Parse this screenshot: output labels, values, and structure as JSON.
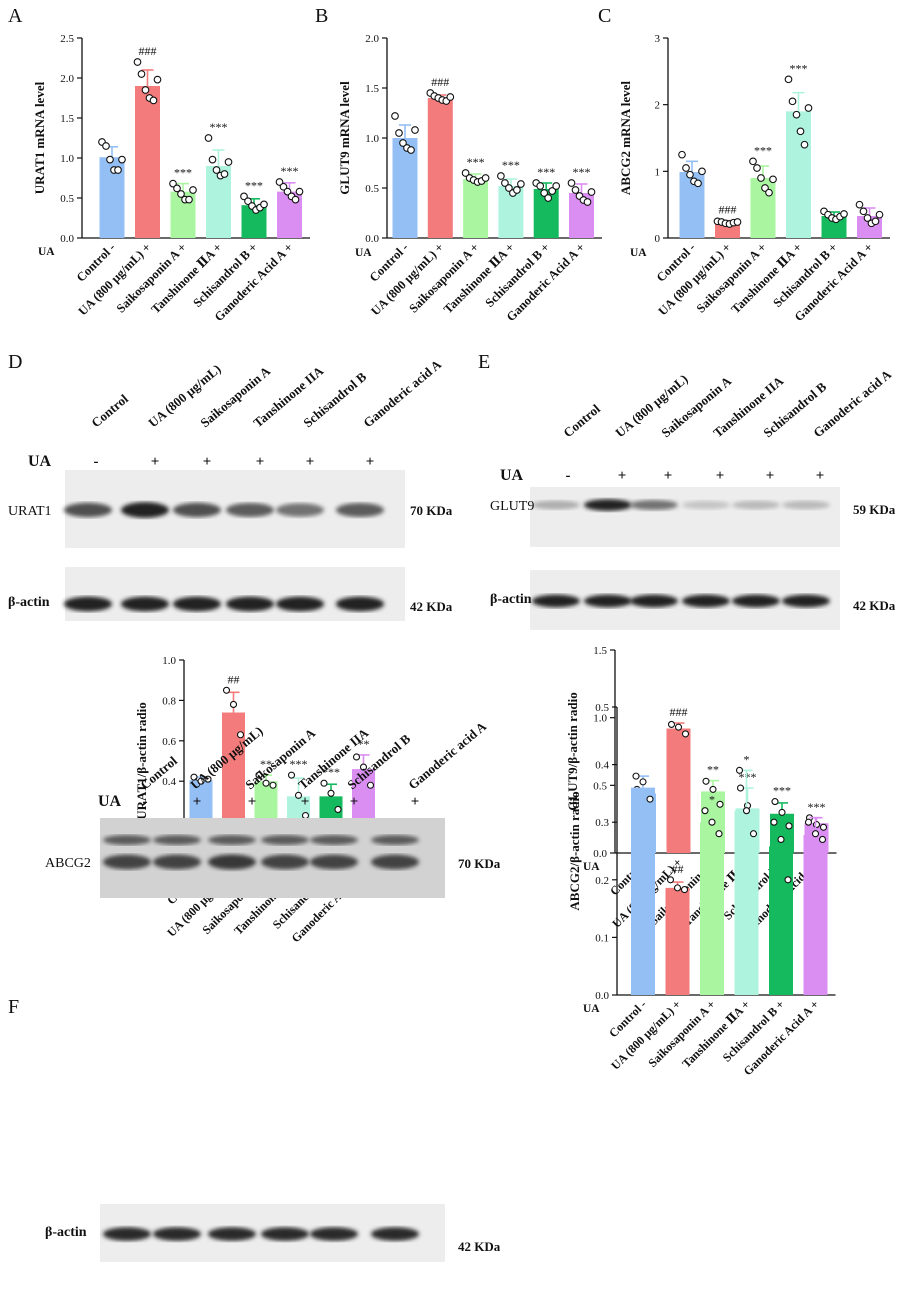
{
  "colors": [
    "#93bff5",
    "#f47b7b",
    "#aaf5a0",
    "#aef3de",
    "#16ba5e",
    "#db8ef2"
  ],
  "dot_color": "#111111",
  "panel_letters": [
    "A",
    "B",
    "C",
    "D",
    "E",
    "F"
  ],
  "ua_label": "UA",
  "ua_signs": [
    "-",
    "+",
    "+",
    "+",
    "+",
    "+"
  ],
  "chart_data": [
    {
      "id": "A",
      "type": "bar",
      "ylabel": "URAT1 mRNA level",
      "categories": [
        "Control",
        "UA (800 μg/mL)",
        "Saikosaponin A",
        "Tanshinone ⅡA",
        "Schisandrol B",
        "Ganoderic Acid A"
      ],
      "values": [
        1.01,
        1.9,
        0.58,
        0.9,
        0.41,
        0.58
      ],
      "errors": [
        0.13,
        0.2,
        0.1,
        0.2,
        0.08,
        0.11
      ],
      "points": [
        [
          1.2,
          1.15,
          0.98,
          0.85,
          0.85,
          0.98
        ],
        [
          2.2,
          2.05,
          1.85,
          1.75,
          1.72,
          1.98
        ],
        [
          0.68,
          0.62,
          0.55,
          0.48,
          0.48,
          0.6
        ],
        [
          1.25,
          0.98,
          0.85,
          0.78,
          0.8,
          0.95
        ],
        [
          0.52,
          0.46,
          0.4,
          0.35,
          0.38,
          0.42
        ],
        [
          0.7,
          0.64,
          0.58,
          0.52,
          0.48,
          0.58
        ]
      ],
      "annotations": [
        "",
        "###",
        "***",
        "***",
        "***",
        "***"
      ],
      "ylim": [
        0,
        2.5
      ],
      "yticks": [
        "0.0",
        "0.5",
        "1.0",
        "1.5",
        "2.0",
        "2.5"
      ]
    },
    {
      "id": "B",
      "type": "bar",
      "ylabel": "GLUT9 mRNA level",
      "categories": [
        "Control",
        "UA (800 μg/mL)",
        "Saikosaponin A",
        "Tanshinone ⅡA",
        "Schisandrol B",
        "Ganoderic Acid A"
      ],
      "values": [
        1.0,
        1.4,
        0.59,
        0.52,
        0.49,
        0.45
      ],
      "errors": [
        0.13,
        0.03,
        0.05,
        0.07,
        0.06,
        0.09
      ],
      "points": [
        [
          1.22,
          1.05,
          0.95,
          0.9,
          0.88,
          1.08
        ],
        [
          1.45,
          1.42,
          1.4,
          1.38,
          1.37,
          1.41
        ],
        [
          0.65,
          0.6,
          0.58,
          0.56,
          0.57,
          0.6
        ],
        [
          0.62,
          0.55,
          0.5,
          0.45,
          0.48,
          0.54
        ],
        [
          0.55,
          0.52,
          0.45,
          0.4,
          0.47,
          0.52
        ],
        [
          0.55,
          0.48,
          0.42,
          0.38,
          0.36,
          0.46
        ]
      ],
      "annotations": [
        "",
        "###",
        "***",
        "***",
        "***",
        "***"
      ],
      "ylim": [
        0,
        2.0
      ],
      "yticks": [
        "0.0",
        "0.5",
        "1.0",
        "1.5",
        "2.0"
      ]
    },
    {
      "id": "C",
      "type": "bar",
      "ylabel": "ABCG2 mRNA level",
      "categories": [
        "Control",
        "UA (800 μg/mL)",
        "Saikosaponin A",
        "Tanshinone ⅡA",
        "Schisandrol B",
        "Ganoderic Acid A"
      ],
      "values": [
        0.99,
        0.23,
        0.9,
        1.9,
        0.33,
        0.33
      ],
      "errors": [
        0.16,
        0.03,
        0.18,
        0.28,
        0.06,
        0.12
      ],
      "points": [
        [
          1.25,
          1.05,
          0.95,
          0.85,
          0.82,
          1.0
        ],
        [
          0.25,
          0.24,
          0.22,
          0.21,
          0.23,
          0.24
        ],
        [
          1.15,
          1.05,
          0.9,
          0.75,
          0.68,
          0.88
        ],
        [
          2.38,
          2.05,
          1.85,
          1.6,
          1.4,
          1.95
        ],
        [
          0.4,
          0.35,
          0.3,
          0.28,
          0.32,
          0.36
        ],
        [
          0.5,
          0.4,
          0.3,
          0.22,
          0.25,
          0.35
        ]
      ],
      "annotations": [
        "",
        "###",
        "***",
        "***",
        "",
        ""
      ],
      "ylim": [
        0,
        3
      ],
      "yticks": [
        "0",
        "1",
        "2",
        "3"
      ]
    },
    {
      "id": "D",
      "type": "bar",
      "ylabel": "URAT1/β-actin radio",
      "categories": [
        "Control",
        "UA (800 μg/mL)",
        "Saikosaponin A",
        "Tanshinone ⅡA",
        "Schisandrol B",
        "Ganoderic Acid A"
      ],
      "values": [
        0.405,
        0.74,
        0.4,
        0.325,
        0.325,
        0.46
      ],
      "errors": [
        0.015,
        0.1,
        0.03,
        0.09,
        0.06,
        0.07
      ],
      "points": [
        [
          0.42,
          0.4,
          0.41
        ],
        [
          0.85,
          0.78,
          0.63
        ],
        [
          0.43,
          0.39,
          0.38
        ],
        [
          0.43,
          0.33,
          0.23
        ],
        [
          0.39,
          0.34,
          0.26
        ],
        [
          0.52,
          0.47,
          0.38
        ]
      ],
      "annotations": [
        "",
        "##",
        "**",
        "***",
        "***",
        "**"
      ],
      "ylim": [
        0,
        1.0
      ],
      "yticks": [
        "0.0",
        "0.2",
        "0.4",
        "0.6",
        "0.8",
        "1.0"
      ]
    },
    {
      "id": "E",
      "type": "bar",
      "ylabel": "GLUT9/β-actin radio",
      "categories": [
        "Control",
        "UA (800 μg/mL)",
        "Saikosaponin A",
        "Tanshinone ⅡA",
        "Schisandrol B",
        "Ganoderic Acid A"
      ],
      "values": [
        0.44,
        0.92,
        0.455,
        0.33,
        0.29,
        0.22
      ],
      "errors": [
        0.03,
        0.04,
        0.08,
        0.15,
        0.08,
        0.04
      ],
      "points": [
        [
          0.47,
          0.43,
          0.42
        ],
        [
          0.95,
          0.93,
          0.88
        ],
        [
          0.53,
          0.47,
          0.36
        ],
        [
          0.48,
          0.35,
          0.16
        ],
        [
          0.38,
          0.3,
          0.2
        ],
        [
          0.26,
          0.21,
          0.19
        ]
      ],
      "annotations": [
        "",
        "###",
        "**",
        "***",
        "***",
        "***"
      ],
      "ylim": [
        0,
        1.5
      ],
      "yticks": [
        "0.0",
        "0.5",
        "1.0",
        "1.5"
      ]
    },
    {
      "id": "F",
      "type": "bar",
      "ylabel": "ABCG2/β-actin radio",
      "categories": [
        "Control",
        "UA (800 μg/mL)",
        "Saikosaponin A",
        "Tanshinone ⅡA",
        "Schisandrol B",
        "Ganoderic Acid A"
      ],
      "values": [
        0.36,
        0.186,
        0.3,
        0.32,
        0.258,
        0.278
      ],
      "errors": [
        0.02,
        0.01,
        0.02,
        0.07,
        0.05,
        0.03
      ],
      "points": [
        [
          0.38,
          0.37,
          0.34
        ],
        [
          0.2,
          0.186,
          0.183
        ],
        [
          0.32,
          0.3,
          0.28
        ],
        [
          0.39,
          0.32,
          0.28
        ],
        [
          0.3,
          0.27,
          0.2
        ],
        [
          0.3,
          0.28,
          0.27
        ]
      ],
      "annotations": [
        "",
        "##",
        "*",
        "*",
        "",
        ""
      ],
      "ylim": [
        0,
        0.5
      ],
      "yticks": [
        "0.0",
        "0.1",
        "0.2",
        "0.3",
        "0.4",
        "0.5"
      ]
    }
  ],
  "blots": [
    {
      "id": "D",
      "lanes": [
        "Control",
        "UA  (800 μg/mL)",
        "Saikosaponin A",
        "Tanshinone IIA",
        "Schisandrol B",
        "Ganoderic acid A"
      ],
      "rows": [
        {
          "protein": "URAT1",
          "kda": "70 KDa",
          "intensity": [
            0.75,
            0.95,
            0.75,
            0.7,
            0.6,
            0.7
          ]
        },
        {
          "protein": "β-actin",
          "kda": "42 KDa",
          "intensity": [
            0.95,
            0.95,
            0.95,
            0.95,
            0.95,
            0.95
          ]
        }
      ]
    },
    {
      "id": "E",
      "lanes": [
        "Control",
        "UA  (800 μg/mL)",
        "Saikosaponin A",
        "Tanshinone IIA",
        "Schisandrol B",
        "Ganoderic acid A"
      ],
      "rows": [
        {
          "protein": "GLUT9",
          "kda": "59 KDa",
          "intensity": [
            0.35,
            0.95,
            0.6,
            0.25,
            0.3,
            0.3
          ]
        },
        {
          "protein": "β-actin",
          "kda": "42 KDa",
          "intensity": [
            0.95,
            0.95,
            0.95,
            0.95,
            0.95,
            0.95
          ]
        }
      ]
    },
    {
      "id": "F",
      "lanes": [
        "Control",
        "UA  (800 μg/mL)",
        "Saikosaponin A",
        "Tanshinone IIA",
        "Schisandrol B",
        "Ganoderic acid A"
      ],
      "rows": [
        {
          "protein": "ABCG2",
          "kda": "70 KDa",
          "intensity": [
            0.8,
            0.8,
            0.85,
            0.8,
            0.8,
            0.8
          ]
        },
        {
          "protein": "β-actin",
          "kda": "42 KDa",
          "intensity": [
            0.9,
            0.9,
            0.9,
            0.9,
            0.9,
            0.9
          ]
        }
      ]
    }
  ]
}
